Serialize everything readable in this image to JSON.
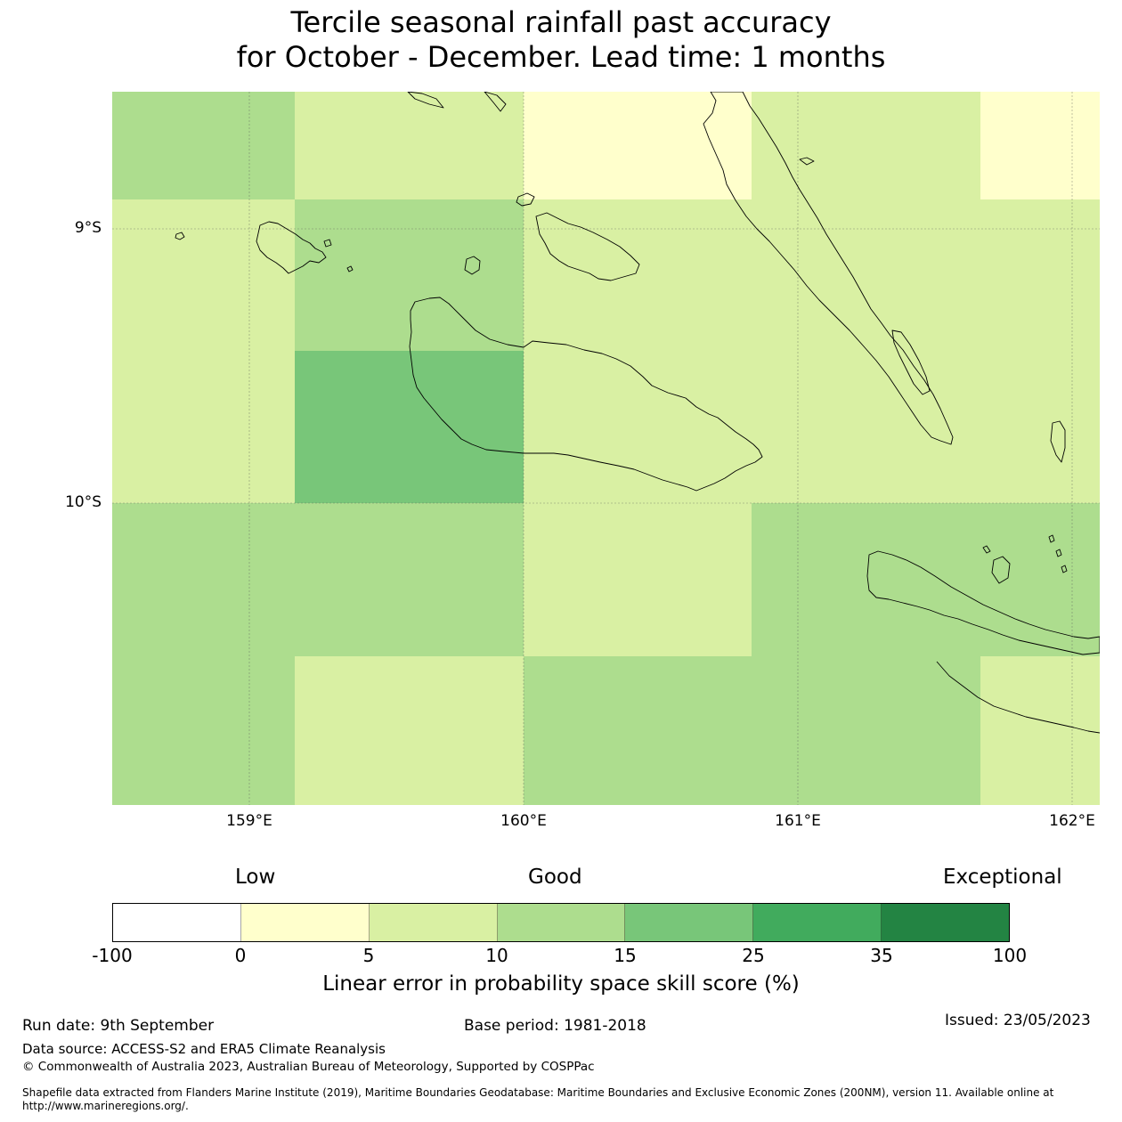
{
  "title": {
    "line1": "Tercile seasonal rainfall past accuracy",
    "line2": "for October - December. Lead time: 1 months"
  },
  "map": {
    "lat_labels": [
      "9°S",
      "10°S"
    ],
    "lon_labels": [
      "159°E",
      "160°E",
      "161°E",
      "162°E"
    ],
    "skill_grid": [
      [
        "10-15",
        "5-10",
        "0-5",
        "5-10",
        "0-5"
      ],
      [
        "5-10",
        "10-15",
        "5-10",
        "5-10",
        "5-10"
      ],
      [
        "5-10",
        "15-25",
        "5-10",
        "5-10",
        "5-10"
      ],
      [
        "10-15",
        "10-15",
        "5-10",
        "10-15",
        "10-15"
      ],
      [
        "10-15",
        "5-10",
        "10-15",
        "10-15",
        "5-10"
      ]
    ],
    "category_colors": {
      "-100-0": "#ffffff",
      "0-5": "#ffffcc",
      "5-10": "#d9f0a3",
      "10-15": "#addd8e",
      "15-25": "#78c679",
      "25-35": "#41ab5d",
      "35-100": "#238443"
    }
  },
  "colorbar": {
    "category_labels": {
      "low": "Low",
      "good": "Good",
      "exceptional": "Exceptional"
    },
    "ticks": [
      "-100",
      "0",
      "5",
      "10",
      "15",
      "25",
      "35",
      "100"
    ],
    "colors": [
      "#ffffff",
      "#ffffcc",
      "#d9f0a3",
      "#addd8e",
      "#78c679",
      "#41ab5d",
      "#238443"
    ],
    "title": "Linear error in probability space skill score (%)"
  },
  "footer": {
    "run_date": "Run date: 9th September",
    "base_period": "Base period: 1981-2018",
    "issued": "Issued: 23/05/2023",
    "data_source": "Data source: ACCESS-S2 and ERA5 Climate Reanalysis",
    "copyright": "© Commonwealth of Australia 2023, Australian Bureau of Meteorology, Supported by COSPPac",
    "shapefile": "Shapefile data extracted from Flanders Marine Institute (2019), Maritime Boundaries Geodatabase: Maritime Boundaries and Exclusive Economic Zones (200NM), version 11. Available online at http://www.marineregions.org/."
  }
}
